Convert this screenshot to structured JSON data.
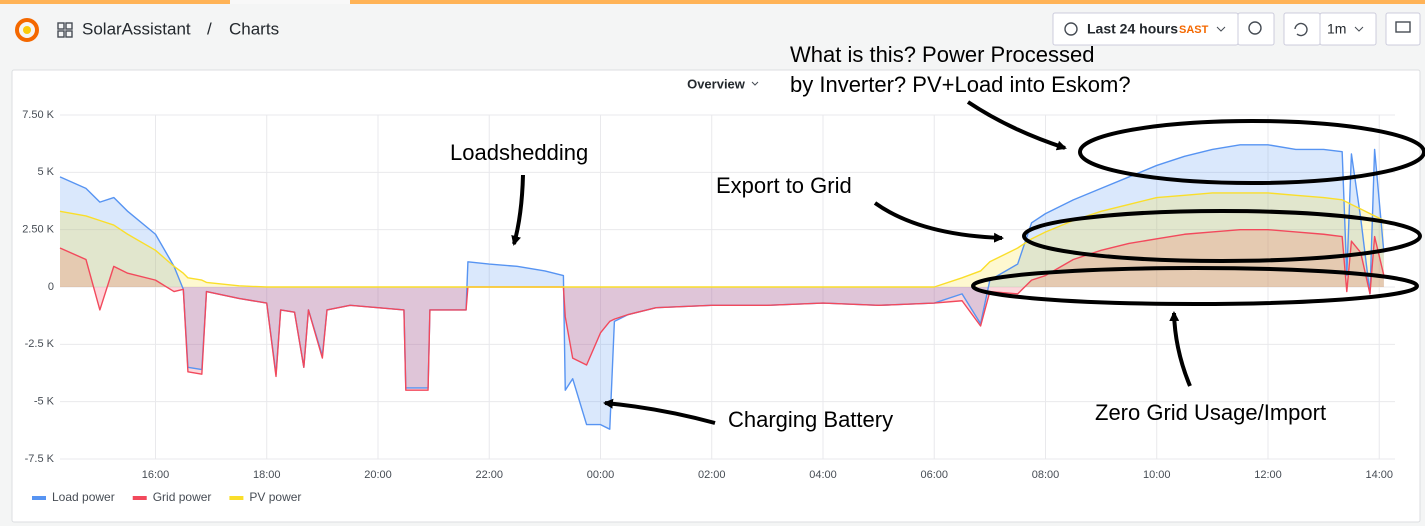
{
  "header": {
    "app": "SolarAssistant",
    "separator": "/",
    "page": "Charts",
    "time_range": "Last 24 hours",
    "timezone": "SAST",
    "refresh": "1m"
  },
  "chart_data": {
    "type": "line",
    "title": "Overview",
    "x": [
      "14:17",
      "14:45",
      "15:00",
      "15:15",
      "15:30",
      "16:00",
      "16:20",
      "16:30",
      "16:35",
      "16:50",
      "16:55",
      "17:30",
      "18:00",
      "18:10",
      "18:15",
      "18:30",
      "18:40",
      "18:45",
      "19:00",
      "19:05",
      "19:30",
      "20:00",
      "20:28",
      "20:30",
      "20:54",
      "20:56",
      "21:35",
      "21:37",
      "22:00",
      "22:30",
      "23:00",
      "23:20",
      "23:22",
      "23:30",
      "23:45",
      "00:00",
      "00:10",
      "00:15",
      "00:30",
      "01:00",
      "02:00",
      "03:00",
      "04:00",
      "05:00",
      "06:00",
      "06:30",
      "06:50",
      "07:00",
      "07:30",
      "07:45",
      "08:00",
      "08:30",
      "09:00",
      "09:30",
      "10:00",
      "10:30",
      "11:00",
      "11:30",
      "12:00",
      "12:30",
      "13:00",
      "13:20",
      "13:25",
      "13:30",
      "13:40",
      "13:50",
      "13:55",
      "14:05"
    ],
    "series": [
      {
        "name": "Load power",
        "color": "#5794f2",
        "values": [
          4800,
          4300,
          3700,
          3900,
          3300,
          2300,
          900,
          -100,
          -3500,
          -3600,
          -200,
          -500,
          -700,
          -3800,
          -1000,
          -1100,
          -3500,
          -1000,
          -3000,
          -1000,
          -800,
          -900,
          -1000,
          -4400,
          -4400,
          -1000,
          -1000,
          1100,
          1000,
          900,
          700,
          500,
          -4500,
          -4000,
          -6000,
          -6000,
          -6200,
          -1500,
          -1200,
          -900,
          -800,
          -800,
          -700,
          -800,
          -700,
          -300,
          -1600,
          300,
          1000,
          2800,
          3200,
          3800,
          4300,
          4800,
          5300,
          5700,
          6000,
          6200,
          6200,
          6000,
          6000,
          5900,
          500,
          5800,
          3000,
          -300,
          6000,
          1500
        ]
      },
      {
        "name": "Grid power",
        "color": "#f2495c",
        "values": [
          1700,
          1200,
          -1000,
          900,
          600,
          300,
          -200,
          -100,
          -3700,
          -3800,
          -200,
          -500,
          -700,
          -3900,
          -1000,
          -1100,
          -3500,
          -1000,
          -3100,
          -1000,
          -800,
          -900,
          -1000,
          -4500,
          -4500,
          -1000,
          -1000,
          0,
          0,
          0,
          0,
          0,
          -1300,
          -3100,
          -3400,
          -2000,
          -1500,
          -1400,
          -1200,
          -900,
          -800,
          -800,
          -700,
          -800,
          -700,
          -600,
          -1700,
          -200,
          -300,
          300,
          500,
          1200,
          1600,
          1900,
          2100,
          2300,
          2400,
          2500,
          2500,
          2400,
          2300,
          2200,
          -200,
          2000,
          1500,
          -300,
          2200,
          500
        ]
      },
      {
        "name": "PV power",
        "color": "#fade2a",
        "values": [
          3300,
          3100,
          2900,
          2700,
          2300,
          1600,
          900,
          600,
          400,
          300,
          200,
          50,
          0,
          0,
          0,
          0,
          0,
          0,
          0,
          0,
          0,
          0,
          0,
          0,
          0,
          0,
          0,
          0,
          0,
          0,
          0,
          0,
          0,
          0,
          0,
          0,
          0,
          0,
          0,
          0,
          0,
          0,
          0,
          0,
          0,
          400,
          700,
          1100,
          1700,
          2100,
          2400,
          2900,
          3300,
          3600,
          3900,
          4000,
          4100,
          4100,
          4100,
          4000,
          3900,
          3800,
          3700,
          3600,
          3400,
          3200,
          3100,
          2900
        ]
      }
    ],
    "xlim": [
      "14:17",
      "14:17"
    ],
    "xticks": [
      "16:00",
      "18:00",
      "20:00",
      "22:00",
      "00:00",
      "02:00",
      "04:00",
      "06:00",
      "08:00",
      "10:00",
      "12:00",
      "14:00"
    ],
    "ylim": [
      -7500,
      7500
    ],
    "yticks": [
      {
        "value": 7500,
        "label": "7.50 K"
      },
      {
        "value": 5000,
        "label": "5 K"
      },
      {
        "value": 2500,
        "label": "2.50 K"
      },
      0,
      {
        "value": -2500,
        "label": "-2.5 K"
      },
      {
        "value": -5000,
        "label": "-5 K"
      },
      {
        "value": -7500,
        "label": "-7.5 K"
      }
    ],
    "grid": true,
    "legend": "bottom-left",
    "annotations": [
      "What is this? Power Processed",
      "by Inverter? PV+Load into Eskom?",
      "Loadshedding",
      "Export to Grid",
      "Charging Battery",
      "Zero Grid Usage/Import"
    ]
  }
}
